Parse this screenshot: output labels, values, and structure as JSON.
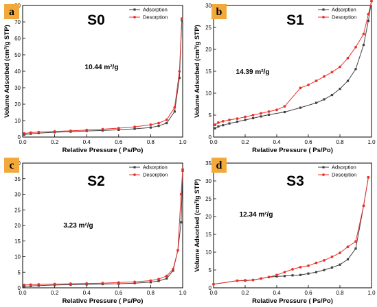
{
  "chart_data": [
    {
      "type": "line",
      "panel_label": "a",
      "title": "S0",
      "annotation": "10.44 m²/g",
      "xlabel": "Relative Pressure ( Ps/Po)",
      "ylabel": "Volume Adsorbed (cm³/g STP)",
      "xlim": [
        0.0,
        1.0
      ],
      "ylim": [
        0,
        80
      ],
      "xticks": [
        "0.0",
        "0.2",
        "0.4",
        "0.6",
        "0.8",
        "1.0"
      ],
      "yticks": [
        "0",
        "10",
        "20",
        "30",
        "40",
        "50",
        "60",
        "70",
        "80"
      ],
      "legend_position": "top-right",
      "series": [
        {
          "name": "Adsorption",
          "color": "#404040",
          "x": [
            0.01,
            0.05,
            0.1,
            0.2,
            0.3,
            0.4,
            0.5,
            0.6,
            0.7,
            0.8,
            0.85,
            0.9,
            0.95,
            0.98,
            0.995
          ],
          "y": [
            1.5,
            2.0,
            2.4,
            2.9,
            3.3,
            3.7,
            4.0,
            4.4,
            5.0,
            5.8,
            6.8,
            8.5,
            15.5,
            36.0,
            71.0
          ]
        },
        {
          "name": "Desorption",
          "color": "#e8332b",
          "x": [
            0.995,
            0.98,
            0.95,
            0.9,
            0.85,
            0.8,
            0.7,
            0.6,
            0.5,
            0.4,
            0.3,
            0.2,
            0.1,
            0.05,
            0.01
          ],
          "y": [
            72.0,
            40.0,
            18.0,
            10.5,
            8.5,
            7.5,
            6.2,
            5.4,
            4.8,
            4.3,
            3.8,
            3.4,
            3.0,
            2.7,
            2.2
          ]
        }
      ]
    },
    {
      "type": "line",
      "panel_label": "b",
      "title": "S1",
      "annotation": "14.39 m²/g",
      "xlabel": "Relative Pressure ( Ps/Po)",
      "ylabel": "Volume Adsorbed (cm³/g STP)",
      "xlim": [
        0.0,
        1.0
      ],
      "ylim": [
        0,
        30
      ],
      "xticks": [
        "0.0",
        "0.2",
        "0.4",
        "0.6",
        "0.8",
        "1.0"
      ],
      "yticks": [
        "0",
        "5",
        "10",
        "15",
        "20",
        "25",
        "30"
      ],
      "legend_position": "top-right",
      "series": [
        {
          "name": "Adsorption",
          "color": "#404040",
          "x": [
            0.01,
            0.03,
            0.06,
            0.1,
            0.15,
            0.2,
            0.25,
            0.3,
            0.35,
            0.45,
            0.55,
            0.65,
            0.7,
            0.75,
            0.8,
            0.85,
            0.9,
            0.95,
            0.98,
            1.0
          ],
          "y": [
            2.0,
            2.4,
            2.7,
            3.1,
            3.5,
            3.9,
            4.3,
            4.7,
            5.1,
            5.7,
            6.7,
            7.8,
            8.6,
            9.6,
            11.0,
            12.8,
            15.5,
            21.0,
            26.5,
            31.0
          ]
        },
        {
          "name": "Desorption",
          "color": "#e8332b",
          "x": [
            1.0,
            0.98,
            0.95,
            0.9,
            0.85,
            0.8,
            0.75,
            0.7,
            0.65,
            0.6,
            0.55,
            0.45,
            0.4,
            0.35,
            0.3,
            0.25,
            0.2,
            0.15,
            0.1,
            0.06,
            0.03,
            0.01
          ],
          "y": [
            31.0,
            28.0,
            23.5,
            20.5,
            18.0,
            16.0,
            14.8,
            13.8,
            12.8,
            11.9,
            11.2,
            7.0,
            6.2,
            5.8,
            5.4,
            5.0,
            4.6,
            4.2,
            3.9,
            3.6,
            3.3,
            2.8
          ]
        }
      ]
    },
    {
      "type": "line",
      "panel_label": "c",
      "title": "S2",
      "annotation": "3.23 m²/g",
      "xlabel": "Relative Pressure ( Ps/Po)",
      "ylabel": "",
      "xlim": [
        0.0,
        1.0
      ],
      "ylim": [
        0,
        40
      ],
      "xticks": [
        "0.0",
        "0.2",
        "0.4",
        "0.6",
        "0.8",
        "1.0"
      ],
      "yticks": [
        "0",
        "5",
        "10",
        "15",
        "20",
        "25",
        "30",
        "35",
        "40"
      ],
      "legend_position": "top-right",
      "series": [
        {
          "name": "Adsorption",
          "color": "#404040",
          "x": [
            0.01,
            0.05,
            0.1,
            0.2,
            0.3,
            0.4,
            0.5,
            0.6,
            0.7,
            0.8,
            0.85,
            0.9,
            0.94,
            0.97,
            0.99,
            1.0
          ],
          "y": [
            0.5,
            0.6,
            0.7,
            0.9,
            1.0,
            1.1,
            1.2,
            1.3,
            1.5,
            1.8,
            2.2,
            3.0,
            5.5,
            12.0,
            21.0,
            37.5
          ]
        },
        {
          "name": "Desorption",
          "color": "#e8332b",
          "x": [
            1.0,
            0.99,
            0.97,
            0.94,
            0.9,
            0.85,
            0.8,
            0.7,
            0.6,
            0.5,
            0.4,
            0.3,
            0.2,
            0.1,
            0.05,
            0.01
          ],
          "y": [
            38.0,
            30.0,
            12.0,
            6.0,
            3.8,
            2.8,
            2.3,
            1.9,
            1.7,
            1.5,
            1.4,
            1.3,
            1.2,
            1.1,
            1.0,
            0.9
          ]
        }
      ]
    },
    {
      "type": "line",
      "panel_label": "d",
      "title": "S3",
      "annotation": "12.34 m²/g",
      "xlabel": "Relative Pressure ( Ps/Po)",
      "ylabel": "Volume Adsorbed (cm³/g STP)",
      "xlim": [
        0.0,
        1.0
      ],
      "ylim": [
        0,
        35
      ],
      "xticks": [
        "0.0",
        "0.2",
        "0.4",
        "0.6",
        "0.8",
        "1.0"
      ],
      "yticks": [
        "0",
        "5",
        "10",
        "15",
        "20",
        "25",
        "30",
        "35"
      ],
      "legend_position": "top-right",
      "series": [
        {
          "name": "Adsorption",
          "color": "#404040",
          "x": [
            0.0,
            0.15,
            0.2,
            0.25,
            0.3,
            0.35,
            0.4,
            0.45,
            0.5,
            0.55,
            0.6,
            0.65,
            0.7,
            0.75,
            0.8,
            0.85,
            0.9,
            0.95,
            0.98
          ],
          "y": [
            1.0,
            2.0,
            2.0,
            2.2,
            2.6,
            3.0,
            3.2,
            3.3,
            3.5,
            3.6,
            4.0,
            4.4,
            5.0,
            5.7,
            6.5,
            8.0,
            11.0,
            23.0,
            31.0
          ]
        },
        {
          "name": "Desorption",
          "color": "#e8332b",
          "x": [
            0.98,
            0.95,
            0.9,
            0.85,
            0.8,
            0.75,
            0.7,
            0.65,
            0.6,
            0.55,
            0.5,
            0.45,
            0.4,
            0.35,
            0.3,
            0.25,
            0.2,
            0.15,
            0.0
          ],
          "y": [
            31.0,
            23.0,
            13.0,
            11.5,
            9.8,
            8.7,
            7.7,
            7.0,
            6.2,
            5.8,
            5.2,
            4.4,
            3.6,
            3.0,
            2.6,
            2.2,
            2.1,
            2.0,
            1.0
          ]
        }
      ]
    }
  ]
}
